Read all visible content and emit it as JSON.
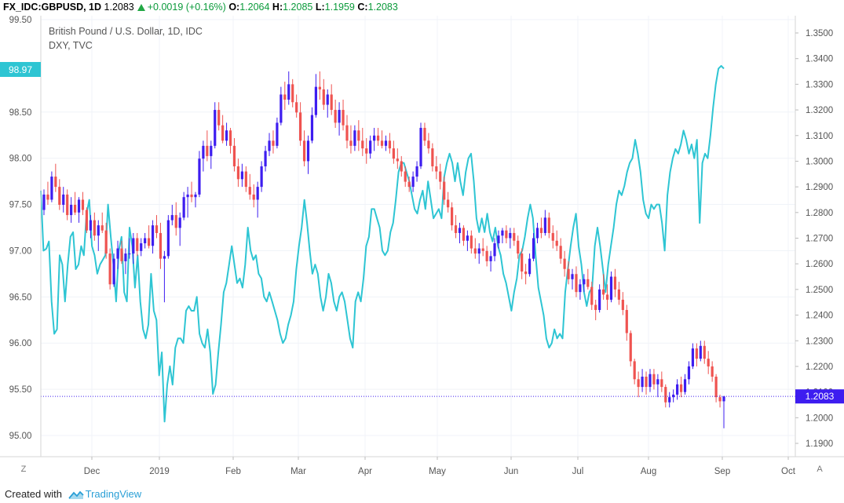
{
  "header": {
    "symbol": "FX_IDC:GBPUSD, 1D",
    "last": "1.2083",
    "change": "+0.0019 (+0.16%)",
    "open_label": "O:",
    "open": "1.2064",
    "high_label": "H:",
    "high": "1.2085",
    "low_label": "L:",
    "low": "1.1959",
    "close_label": "C:",
    "close": "1.2083"
  },
  "legend": {
    "main": "British Pound / U.S. Dollar, 1D, IDC",
    "overlay": "DXY, TVC"
  },
  "footer": {
    "prefix": "Created with",
    "brand": "TradingView"
  },
  "buttons": {
    "left": "Z",
    "right": "A"
  },
  "colors": {
    "up": "#3d1df0",
    "down": "#ef5350",
    "overlay": "#2ec5d3",
    "last_price_bg": "#3d1df0",
    "overlay_badge_bg": "#2ec5d3"
  },
  "chart_data": {
    "type": "candlestick",
    "left_axis": {
      "name": "DXY",
      "ticks": [
        "99.50",
        "98.50",
        "98.00",
        "97.50",
        "97.00",
        "96.50",
        "96.00",
        "95.50",
        "95.00"
      ],
      "range": [
        95.0,
        99.5
      ]
    },
    "right_axis": {
      "name": "GBPUSD",
      "ticks": [
        "1.3500",
        "1.3400",
        "1.3300",
        "1.3200",
        "1.3100",
        "1.3000",
        "1.2900",
        "1.2800",
        "1.2700",
        "1.2600",
        "1.2500",
        "1.2400",
        "1.2300",
        "1.2200",
        "1.2100",
        "1.2000",
        "1.1900"
      ],
      "range": [
        1.1885,
        1.3535
      ]
    },
    "x_axis": {
      "ticks": [
        "Dec",
        "2019",
        "Feb",
        "Mar",
        "Apr",
        "May",
        "Jun",
        "Jul",
        "Aug",
        "Sep",
        "Oct"
      ]
    },
    "overlay_last_label": "98.97",
    "last_price_label": "1.2083",
    "overlay_series": {
      "name": "DXY, TVC",
      "values": [
        97.65,
        97.0,
        97.02,
        97.1,
        96.45,
        96.1,
        96.15,
        96.95,
        96.85,
        96.45,
        96.85,
        97.15,
        97.2,
        96.8,
        96.85,
        97.05,
        96.95,
        97.4,
        97.55,
        97.05,
        96.95,
        96.75,
        96.85,
        96.9,
        96.95,
        97.5,
        97.15,
        96.85,
        96.45,
        97.0,
        97.15,
        96.55,
        96.45,
        97.25,
        97.05,
        96.6,
        96.95,
        96.45,
        96.15,
        96.05,
        96.2,
        96.75,
        96.35,
        96.25,
        95.65,
        95.9,
        95.15,
        95.55,
        95.75,
        95.55,
        95.95,
        96.05,
        96.05,
        96.0,
        96.35,
        96.4,
        96.35,
        96.35,
        96.5,
        96.1,
        96.0,
        95.95,
        96.15,
        95.9,
        95.45,
        95.55,
        95.9,
        96.2,
        96.55,
        96.65,
        96.85,
        97.05,
        96.85,
        96.65,
        96.7,
        96.6,
        96.85,
        97.25,
        97.0,
        96.9,
        96.95,
        96.75,
        96.7,
        96.5,
        96.45,
        96.55,
        96.45,
        96.35,
        96.25,
        96.1,
        96.0,
        96.05,
        96.2,
        96.3,
        96.45,
        96.8,
        97.05,
        97.25,
        97.55,
        97.3,
        97.0,
        96.75,
        96.85,
        96.75,
        96.5,
        96.35,
        96.5,
        96.75,
        96.65,
        96.45,
        96.35,
        96.5,
        96.55,
        96.45,
        96.25,
        96.05,
        95.95,
        96.45,
        96.55,
        96.45,
        96.7,
        97.05,
        97.15,
        97.45,
        97.45,
        97.35,
        97.25,
        97.0,
        96.95,
        97.0,
        97.2,
        97.3,
        97.55,
        97.85,
        97.95,
        97.95,
        97.85,
        97.75,
        97.6,
        97.45,
        97.4,
        97.55,
        97.65,
        97.45,
        97.75,
        97.55,
        97.35,
        97.4,
        97.45,
        97.35,
        97.8,
        97.95,
        98.05,
        97.95,
        97.75,
        97.95,
        97.75,
        97.6,
        97.85,
        98.0,
        98.05,
        97.75,
        97.35,
        97.2,
        97.35,
        97.2,
        97.4,
        97.2,
        97.1,
        97.25,
        97.05,
        96.95,
        96.75,
        96.65,
        96.5,
        96.35,
        96.55,
        96.7,
        96.95,
        97.0,
        97.15,
        97.35,
        97.5,
        97.35,
        96.95,
        96.6,
        96.45,
        96.3,
        96.05,
        95.95,
        96.0,
        96.15,
        96.05,
        96.1,
        96.05,
        96.55,
        96.8,
        97.05,
        97.25,
        97.4,
        97.05,
        96.85,
        96.55,
        96.4,
        96.55,
        96.6,
        97.05,
        97.25,
        97.05,
        96.8,
        96.55,
        96.85,
        97.05,
        97.25,
        97.5,
        97.65,
        97.6,
        97.7,
        97.85,
        97.95,
        98.0,
        98.2,
        98.05,
        97.85,
        97.55,
        97.4,
        97.35,
        97.5,
        97.45,
        97.5,
        97.5,
        97.3,
        97.0,
        97.6,
        97.85,
        98.0,
        98.1,
        98.05,
        98.15,
        98.3,
        98.2,
        98.05,
        98.15,
        98.0,
        98.2,
        97.3,
        97.95,
        98.05,
        98.0,
        98.25,
        98.55,
        98.8,
        98.97,
        99.0,
        98.97
      ]
    },
    "candles_ohlc_note": "GBPUSD daily OHLC, Nov 2018 – Sep 2019",
    "candles": [
      [
        1.281,
        1.289,
        1.279,
        1.287
      ],
      [
        1.287,
        1.292,
        1.283,
        1.285
      ],
      [
        1.285,
        1.296,
        1.284,
        1.294
      ],
      [
        1.294,
        1.299,
        1.288,
        1.29
      ],
      [
        1.29,
        1.293,
        1.281,
        1.283
      ],
      [
        1.283,
        1.29,
        1.28,
        1.287
      ],
      [
        1.287,
        1.289,
        1.277,
        1.279
      ],
      [
        1.279,
        1.286,
        1.276,
        1.283
      ],
      [
        1.283,
        1.288,
        1.279,
        1.28
      ],
      [
        1.28,
        1.286,
        1.276,
        1.285
      ],
      [
        1.285,
        1.288,
        1.279,
        1.281
      ],
      [
        1.281,
        1.282,
        1.272,
        1.273
      ],
      [
        1.273,
        1.279,
        1.27,
        1.277
      ],
      [
        1.277,
        1.28,
        1.269,
        1.271
      ],
      [
        1.271,
        1.277,
        1.265,
        1.275
      ],
      [
        1.275,
        1.28,
        1.272,
        1.273
      ],
      [
        1.273,
        1.276,
        1.262,
        1.264
      ],
      [
        1.264,
        1.266,
        1.25,
        1.252
      ],
      [
        1.252,
        1.264,
        1.251,
        1.262
      ],
      [
        1.262,
        1.269,
        1.258,
        1.266
      ],
      [
        1.266,
        1.269,
        1.26,
        1.261
      ],
      [
        1.261,
        1.266,
        1.256,
        1.264
      ],
      [
        1.264,
        1.27,
        1.262,
        1.264
      ],
      [
        1.264,
        1.272,
        1.26,
        1.27
      ],
      [
        1.27,
        1.272,
        1.263,
        1.265
      ],
      [
        1.265,
        1.27,
        1.263,
        1.268
      ],
      [
        1.268,
        1.272,
        1.266,
        1.27
      ],
      [
        1.27,
        1.275,
        1.266,
        1.267
      ],
      [
        1.267,
        1.277,
        1.264,
        1.275
      ],
      [
        1.275,
        1.279,
        1.27,
        1.272
      ],
      [
        1.272,
        1.276,
        1.258,
        1.262
      ],
      [
        1.262,
        1.265,
        1.245,
        1.263
      ],
      [
        1.263,
        1.279,
        1.262,
        1.277
      ],
      [
        1.277,
        1.283,
        1.275,
        1.279
      ],
      [
        1.279,
        1.284,
        1.271,
        1.274
      ],
      [
        1.274,
        1.28,
        1.267,
        1.278
      ],
      [
        1.278,
        1.288,
        1.277,
        1.286
      ],
      [
        1.286,
        1.29,
        1.278,
        1.287
      ],
      [
        1.287,
        1.292,
        1.284,
        1.286
      ],
      [
        1.286,
        1.288,
        1.282,
        1.287
      ],
      [
        1.287,
        1.304,
        1.286,
        1.301
      ],
      [
        1.301,
        1.308,
        1.296,
        1.306
      ],
      [
        1.306,
        1.312,
        1.3,
        1.302
      ],
      [
        1.302,
        1.308,
        1.297,
        1.306
      ],
      [
        1.306,
        1.323,
        1.305,
        1.32
      ],
      [
        1.32,
        1.323,
        1.312,
        1.314
      ],
      [
        1.314,
        1.318,
        1.307,
        1.308
      ],
      [
        1.308,
        1.315,
        1.306,
        1.312
      ],
      [
        1.312,
        1.313,
        1.303,
        1.306
      ],
      [
        1.306,
        1.309,
        1.296,
        1.298
      ],
      [
        1.298,
        1.301,
        1.29,
        1.293
      ],
      [
        1.293,
        1.299,
        1.29,
        1.296
      ],
      [
        1.296,
        1.298,
        1.288,
        1.29
      ],
      [
        1.29,
        1.295,
        1.285,
        1.287
      ],
      [
        1.287,
        1.291,
        1.282,
        1.285
      ],
      [
        1.285,
        1.292,
        1.278,
        1.29
      ],
      [
        1.29,
        1.3,
        1.288,
        1.298
      ],
      [
        1.298,
        1.306,
        1.296,
        1.304
      ],
      [
        1.304,
        1.311,
        1.302,
        1.308
      ],
      [
        1.308,
        1.312,
        1.303,
        1.306
      ],
      [
        1.306,
        1.317,
        1.305,
        1.315
      ],
      [
        1.315,
        1.329,
        1.314,
        1.326
      ],
      [
        1.326,
        1.331,
        1.32,
        1.324
      ],
      [
        1.324,
        1.335,
        1.322,
        1.33
      ],
      [
        1.33,
        1.332,
        1.321,
        1.323
      ],
      [
        1.323,
        1.326,
        1.317,
        1.319
      ],
      [
        1.319,
        1.323,
        1.306,
        1.308
      ],
      [
        1.308,
        1.312,
        1.298,
        1.3
      ],
      [
        1.3,
        1.31,
        1.295,
        1.308
      ],
      [
        1.308,
        1.321,
        1.307,
        1.318
      ],
      [
        1.318,
        1.334,
        1.317,
        1.329
      ],
      [
        1.329,
        1.335,
        1.324,
        1.328
      ],
      [
        1.328,
        1.332,
        1.32,
        1.322
      ],
      [
        1.322,
        1.328,
        1.317,
        1.326
      ],
      [
        1.326,
        1.33,
        1.318,
        1.32
      ],
      [
        1.32,
        1.324,
        1.313,
        1.315
      ],
      [
        1.315,
        1.323,
        1.31,
        1.32
      ],
      [
        1.32,
        1.324,
        1.312,
        1.314
      ],
      [
        1.314,
        1.318,
        1.305,
        1.308
      ],
      [
        1.308,
        1.314,
        1.303,
        1.306
      ],
      [
        1.306,
        1.314,
        1.304,
        1.312
      ],
      [
        1.312,
        1.316,
        1.304,
        1.308
      ],
      [
        1.308,
        1.313,
        1.302,
        1.305
      ],
      [
        1.305,
        1.309,
        1.299,
        1.303
      ],
      [
        1.303,
        1.31,
        1.301,
        1.308
      ],
      [
        1.308,
        1.313,
        1.304,
        1.31
      ],
      [
        1.31,
        1.313,
        1.306,
        1.308
      ],
      [
        1.308,
        1.312,
        1.305,
        1.306
      ],
      [
        1.306,
        1.31,
        1.304,
        1.308
      ],
      [
        1.308,
        1.311,
        1.303,
        1.305
      ],
      [
        1.305,
        1.308,
        1.299,
        1.301
      ],
      [
        1.301,
        1.305,
        1.297,
        1.3
      ],
      [
        1.3,
        1.302,
        1.294,
        1.296
      ],
      [
        1.296,
        1.298,
        1.29,
        1.292
      ],
      [
        1.292,
        1.294,
        1.288,
        1.29
      ],
      [
        1.29,
        1.296,
        1.288,
        1.294
      ],
      [
        1.294,
        1.3,
        1.292,
        1.298
      ],
      [
        1.298,
        1.315,
        1.297,
        1.313
      ],
      [
        1.313,
        1.315,
        1.306,
        1.308
      ],
      [
        1.308,
        1.311,
        1.303,
        1.305
      ],
      [
        1.305,
        1.307,
        1.296,
        1.298
      ],
      [
        1.298,
        1.302,
        1.293,
        1.296
      ],
      [
        1.296,
        1.299,
        1.289,
        1.292
      ],
      [
        1.292,
        1.294,
        1.283,
        1.285
      ],
      [
        1.285,
        1.288,
        1.28,
        1.282
      ],
      [
        1.282,
        1.284,
        1.273,
        1.275
      ],
      [
        1.275,
        1.279,
        1.27,
        1.272
      ],
      [
        1.272,
        1.276,
        1.268,
        1.274
      ],
      [
        1.274,
        1.275,
        1.267,
        1.269
      ],
      [
        1.269,
        1.273,
        1.265,
        1.271
      ],
      [
        1.271,
        1.273,
        1.264,
        1.266
      ],
      [
        1.266,
        1.27,
        1.262,
        1.264
      ],
      [
        1.264,
        1.268,
        1.26,
        1.266
      ],
      [
        1.266,
        1.27,
        1.263,
        1.265
      ],
      [
        1.265,
        1.267,
        1.259,
        1.261
      ],
      [
        1.261,
        1.265,
        1.257,
        1.263
      ],
      [
        1.263,
        1.27,
        1.261,
        1.268
      ],
      [
        1.268,
        1.273,
        1.266,
        1.271
      ],
      [
        1.271,
        1.274,
        1.268,
        1.273
      ],
      [
        1.273,
        1.275,
        1.268,
        1.27
      ],
      [
        1.27,
        1.274,
        1.266,
        1.272
      ],
      [
        1.272,
        1.274,
        1.267,
        1.269
      ],
      [
        1.269,
        1.271,
        1.262,
        1.264
      ],
      [
        1.264,
        1.266,
        1.254,
        1.257
      ],
      [
        1.257,
        1.26,
        1.252,
        1.256
      ],
      [
        1.256,
        1.264,
        1.255,
        1.262
      ],
      [
        1.262,
        1.272,
        1.261,
        1.27
      ],
      [
        1.27,
        1.276,
        1.268,
        1.274
      ],
      [
        1.274,
        1.278,
        1.27,
        1.272
      ],
      [
        1.272,
        1.281,
        1.271,
        1.278
      ],
      [
        1.278,
        1.28,
        1.27,
        1.272
      ],
      [
        1.272,
        1.275,
        1.266,
        1.269
      ],
      [
        1.269,
        1.273,
        1.265,
        1.267
      ],
      [
        1.267,
        1.27,
        1.26,
        1.262
      ],
      [
        1.262,
        1.265,
        1.255,
        1.258
      ],
      [
        1.258,
        1.261,
        1.252,
        1.254
      ],
      [
        1.254,
        1.258,
        1.25,
        1.256
      ],
      [
        1.256,
        1.259,
        1.247,
        1.249
      ],
      [
        1.249,
        1.254,
        1.246,
        1.252
      ],
      [
        1.252,
        1.256,
        1.249,
        1.254
      ],
      [
        1.254,
        1.258,
        1.25,
        1.251
      ],
      [
        1.251,
        1.253,
        1.242,
        1.244
      ],
      [
        1.244,
        1.246,
        1.238,
        1.242
      ],
      [
        1.242,
        1.252,
        1.241,
        1.25
      ],
      [
        1.25,
        1.256,
        1.246,
        1.248
      ],
      [
        1.248,
        1.252,
        1.242,
        1.246
      ],
      [
        1.246,
        1.257,
        1.245,
        1.255
      ],
      [
        1.255,
        1.258,
        1.247,
        1.25
      ],
      [
        1.25,
        1.253,
        1.244,
        1.246
      ],
      [
        1.246,
        1.249,
        1.24,
        1.242
      ],
      [
        1.242,
        1.244,
        1.23,
        1.233
      ],
      [
        1.233,
        1.234,
        1.22,
        1.222
      ],
      [
        1.222,
        1.223,
        1.213,
        1.215
      ],
      [
        1.215,
        1.218,
        1.208,
        1.212
      ],
      [
        1.212,
        1.219,
        1.21,
        1.216
      ],
      [
        1.216,
        1.218,
        1.209,
        1.212
      ],
      [
        1.212,
        1.219,
        1.21,
        1.217
      ],
      [
        1.217,
        1.219,
        1.211,
        1.213
      ],
      [
        1.213,
        1.217,
        1.208,
        1.215
      ],
      [
        1.215,
        1.218,
        1.21,
        1.212
      ],
      [
        1.212,
        1.213,
        1.204,
        1.206
      ],
      [
        1.206,
        1.21,
        1.204,
        1.208
      ],
      [
        1.208,
        1.211,
        1.206,
        1.209
      ],
      [
        1.209,
        1.215,
        1.207,
        1.213
      ],
      [
        1.213,
        1.216,
        1.208,
        1.21
      ],
      [
        1.21,
        1.217,
        1.209,
        1.215
      ],
      [
        1.215,
        1.222,
        1.213,
        1.22
      ],
      [
        1.22,
        1.229,
        1.219,
        1.227
      ],
      [
        1.227,
        1.229,
        1.22,
        1.223
      ],
      [
        1.223,
        1.23,
        1.222,
        1.228
      ],
      [
        1.228,
        1.23,
        1.221,
        1.223
      ],
      [
        1.223,
        1.226,
        1.217,
        1.22
      ],
      [
        1.22,
        1.222,
        1.214,
        1.216
      ],
      [
        1.216,
        1.217,
        1.206,
        1.208
      ],
      [
        1.208,
        1.209,
        1.204,
        1.2064
      ],
      [
        1.2064,
        1.2085,
        1.1959,
        1.2083
      ]
    ]
  }
}
